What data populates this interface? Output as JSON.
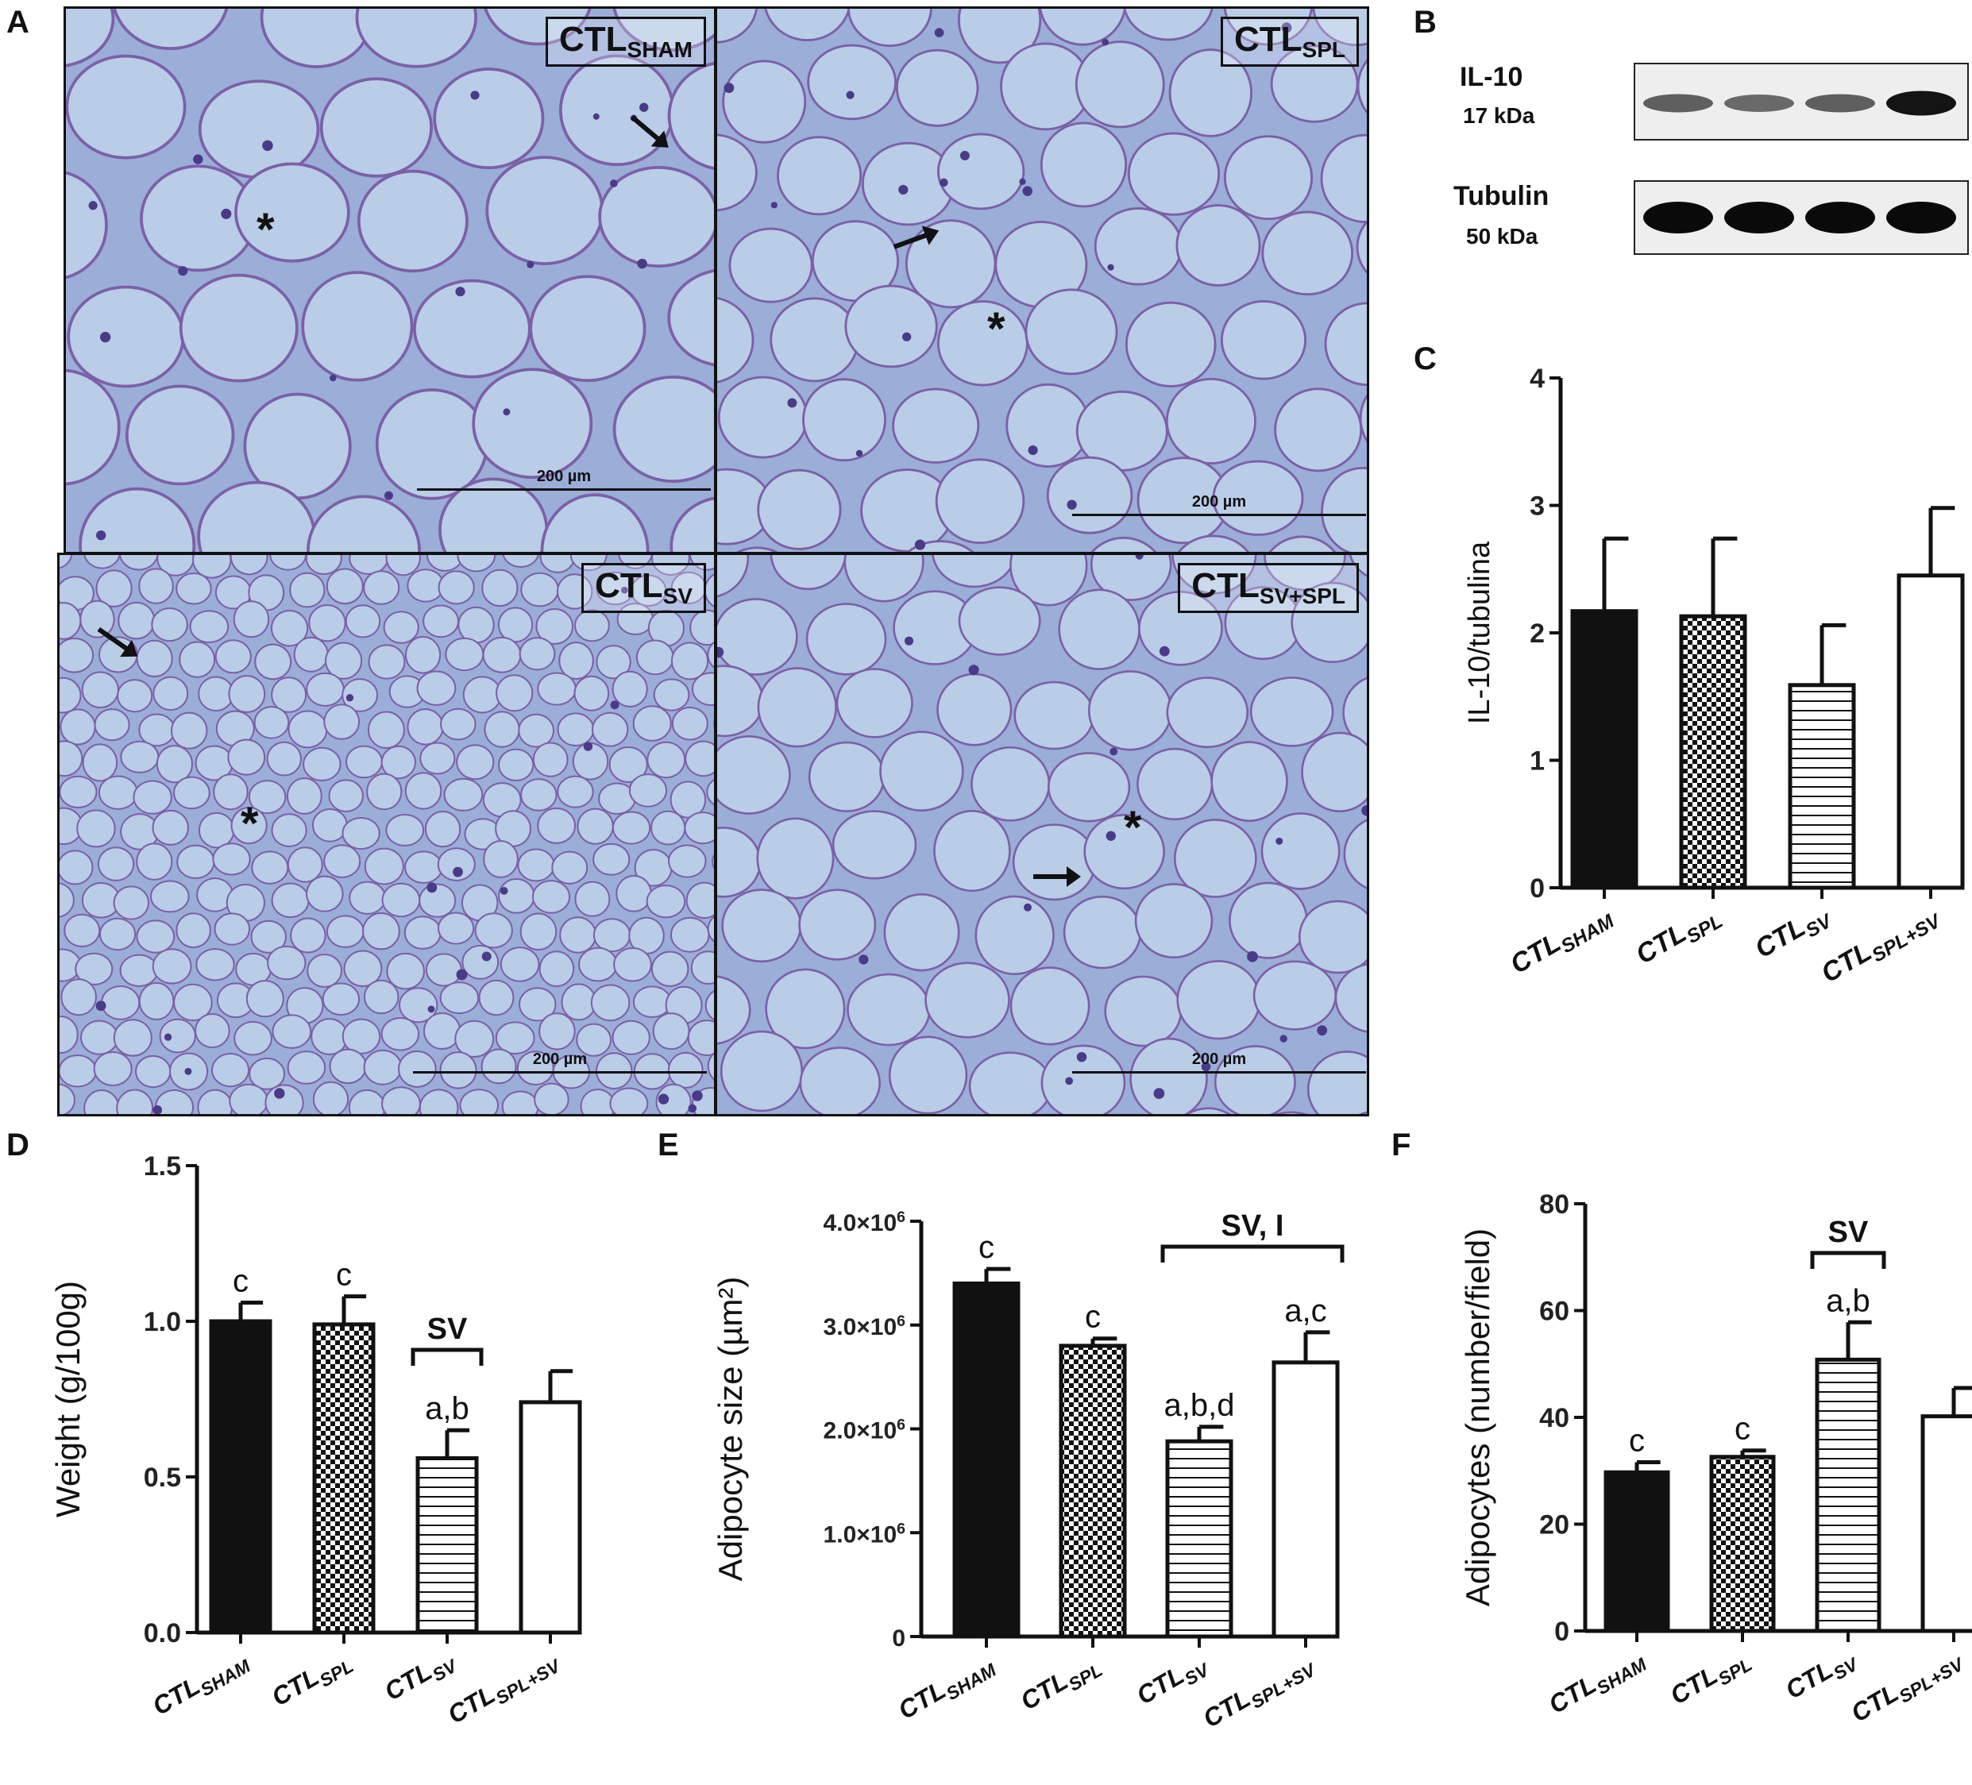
{
  "panels": {
    "A": "A",
    "B": "B",
    "C": "C",
    "D": "D",
    "E": "E",
    "F": "F"
  },
  "micrographs": [
    {
      "id": "sham",
      "base": "CTL",
      "sub": "SHAM",
      "scale": "200 µm",
      "marker": "*"
    },
    {
      "id": "spl",
      "base": "CTL",
      "sub": "SPL",
      "scale": "200 µm",
      "marker": "*"
    },
    {
      "id": "sv",
      "base": "CTL",
      "sub": "SV",
      "scale": "200 µm",
      "marker": "*"
    },
    {
      "id": "svspl",
      "base": "CTL",
      "sub": "SV+SPL",
      "scale": "200 µm",
      "marker": "*"
    }
  ],
  "blot": {
    "rows": [
      {
        "protein": "IL-10",
        "size": "17 kDa",
        "band_intensity": [
          0.55,
          0.5,
          0.55,
          0.95
        ]
      },
      {
        "protein": "Tubulin",
        "size": "50 kDa",
        "band_intensity": [
          1,
          1,
          1,
          1
        ]
      }
    ]
  },
  "colors": {
    "ink": "#111111",
    "tissue_bg": "#9aaed8",
    "cell_fill": "#b9cde6",
    "membrane": "#7d5fa8"
  },
  "chart_data": [
    {
      "panel": "C",
      "type": "bar",
      "categories": [
        {
          "base": "CTL",
          "sub": "SHAM"
        },
        {
          "base": "CTL",
          "sub": "SPL"
        },
        {
          "base": "CTL",
          "sub": "SV"
        },
        {
          "base": "CTL",
          "sub": "SPL+SV"
        }
      ],
      "values": [
        2.17,
        2.13,
        1.59,
        2.45
      ],
      "errors": [
        0.57,
        0.61,
        0.47,
        0.53
      ],
      "patterns": [
        "solid",
        "checker",
        "hlines",
        "white"
      ],
      "ylabel": "IL-10/tubulina",
      "ylim": [
        0,
        4
      ],
      "yticks": [
        {
          "v": 0,
          "t": "0"
        },
        {
          "v": 1,
          "t": "1"
        },
        {
          "v": 2,
          "t": "2"
        },
        {
          "v": 3,
          "t": "3"
        },
        {
          "v": 4,
          "t": "4"
        }
      ],
      "letters": [
        "",
        "",
        "",
        ""
      ],
      "bracket": null
    },
    {
      "panel": "D",
      "type": "bar",
      "categories": [
        {
          "base": "CTL",
          "sub": "SHAM"
        },
        {
          "base": "CTL",
          "sub": "SPL"
        },
        {
          "base": "CTL",
          "sub": "SV"
        },
        {
          "base": "CTL",
          "sub": "SPL+SV"
        }
      ],
      "values": [
        1.0,
        0.99,
        0.56,
        0.74
      ],
      "errors": [
        0.06,
        0.09,
        0.09,
        0.1
      ],
      "patterns": [
        "solid",
        "checker",
        "hlines",
        "white"
      ],
      "ylabel": "Weight (g/100g)",
      "ylim": [
        0,
        1.5
      ],
      "yticks": [
        {
          "v": 0,
          "t": "0.0"
        },
        {
          "v": 0.5,
          "t": "0.5"
        },
        {
          "v": 1.0,
          "t": "1.0"
        },
        {
          "v": 1.5,
          "t": "1.5"
        }
      ],
      "letters": [
        "c",
        "c",
        "a,b",
        ""
      ],
      "bracket": {
        "label": "SV",
        "from": 2,
        "to": 2
      }
    },
    {
      "panel": "E",
      "type": "bar",
      "categories": [
        {
          "base": "CTL",
          "sub": "SHAM"
        },
        {
          "base": "CTL",
          "sub": "SPL"
        },
        {
          "base": "CTL",
          "sub": "SV"
        },
        {
          "base": "CTL",
          "sub": "SPL+SV"
        }
      ],
      "values": [
        3400000,
        2800000,
        1880000,
        2640000
      ],
      "errors": [
        140000,
        70000,
        140000,
        290000
      ],
      "patterns": [
        "solid",
        "checker",
        "hlines",
        "white"
      ],
      "ylabel": "Adipocyte size (µm²)",
      "ylim": [
        0,
        4000000
      ],
      "yticks": [
        {
          "v": 0,
          "t": "0"
        },
        {
          "v": 1000000,
          "t": "1.0×10",
          "e": "6"
        },
        {
          "v": 2000000,
          "t": "2.0×10",
          "e": "6"
        },
        {
          "v": 3000000,
          "t": "3.0×10",
          "e": "6"
        },
        {
          "v": 4000000,
          "t": "4.0×10",
          "e": "6"
        }
      ],
      "letters": [
        "c",
        "c",
        "a,b,d",
        "a,c"
      ],
      "bracket": {
        "label": "SV, I",
        "from": 2,
        "to": 3
      }
    },
    {
      "panel": "F",
      "type": "bar",
      "categories": [
        {
          "base": "CTL",
          "sub": "SHAM"
        },
        {
          "base": "CTL",
          "sub": "SPL"
        },
        {
          "base": "CTL",
          "sub": "SV"
        },
        {
          "base": "CTL",
          "sub": "SPL+SV"
        }
      ],
      "values": [
        29.7,
        32.6,
        50.8,
        40.2
      ],
      "errors": [
        1.9,
        1.2,
        7.0,
        5.3
      ],
      "patterns": [
        "solid",
        "checker",
        "hlines",
        "white"
      ],
      "ylabel": "Adipocytes (number/field)",
      "ylim": [
        0,
        80
      ],
      "yticks": [
        {
          "v": 0,
          "t": "0"
        },
        {
          "v": 20,
          "t": "20"
        },
        {
          "v": 40,
          "t": "40"
        },
        {
          "v": 60,
          "t": "60"
        },
        {
          "v": 80,
          "t": "80"
        }
      ],
      "letters": [
        "c",
        "c",
        "a,b",
        ""
      ],
      "bracket": {
        "label": "SV",
        "from": 2,
        "to": 2
      }
    }
  ]
}
